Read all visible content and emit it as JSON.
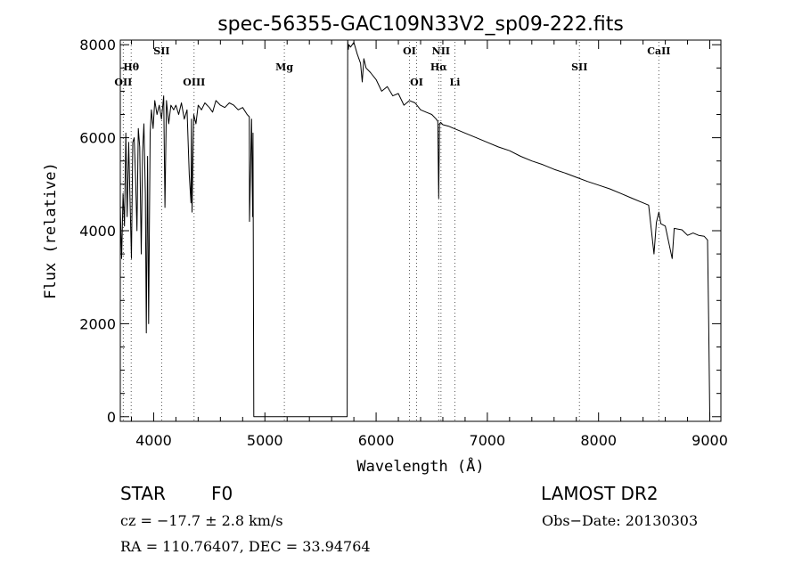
{
  "chart_data": {
    "type": "line",
    "title": "spec-56355-GAC109N33V2_sp09-222.fits",
    "xlabel": "Wavelength (Å)",
    "ylabel": "Flux (relative)",
    "xlim": [
      3700,
      9100
    ],
    "ylim": [
      -100,
      8100
    ],
    "xticks": [
      4000,
      5000,
      6000,
      7000,
      8000,
      9000
    ],
    "yticks": [
      0,
      2000,
      4000,
      6000,
      8000
    ],
    "grid": false,
    "series": [
      {
        "x": [
          3700,
          3712,
          3725,
          3738,
          3750,
          3762,
          3775,
          3788,
          3800,
          3812,
          3825,
          3838,
          3850,
          3862,
          3875,
          3888,
          3900,
          3912,
          3925,
          3934,
          3945,
          3955,
          3968,
          3980,
          3995,
          4010,
          4030,
          4050,
          4070,
          4090,
          4101,
          4115,
          4135,
          4155,
          4180,
          4200,
          4225,
          4250,
          4275,
          4300,
          4320,
          4335,
          4340,
          4345,
          4360,
          4380,
          4400,
          4430,
          4460,
          4500,
          4530,
          4560,
          4600,
          4640,
          4680,
          4720,
          4760,
          4800,
          4840,
          4860,
          4862,
          4880,
          4890,
          4893,
          4900,
          5740,
          5745,
          5750,
          5755,
          5770,
          5800,
          5830,
          5860,
          5875,
          5890,
          5910,
          5950,
          6000,
          6050,
          6100,
          6150,
          6200,
          6250,
          6300,
          6350,
          6400,
          6450,
          6500,
          6540,
          6555,
          6563,
          6570,
          6580,
          6600,
          6650,
          6700,
          6750,
          6800,
          6900,
          7000,
          7100,
          7200,
          7300,
          7400,
          7500,
          7600,
          7700,
          7800,
          7900,
          8000,
          8100,
          8200,
          8300,
          8400,
          8450,
          8498,
          8520,
          8542,
          8560,
          8600,
          8662,
          8680,
          8750,
          8800,
          8850,
          8900,
          8950,
          8980,
          8990,
          9000,
          9005
        ],
        "values": [
          4500,
          3400,
          4800,
          4100,
          6100,
          4300,
          5900,
          4600,
          3400,
          5900,
          6000,
          5100,
          4000,
          6200,
          5800,
          3500,
          5700,
          6300,
          4800,
          1800,
          5600,
          2000,
          6100,
          6600,
          6200,
          6800,
          6500,
          6700,
          6400,
          6900,
          4500,
          6800,
          6300,
          6700,
          6600,
          6700,
          6500,
          6750,
          6400,
          6600,
          5200,
          4600,
          6400,
          4400,
          6500,
          6300,
          6700,
          6600,
          6750,
          6650,
          6550,
          6800,
          6700,
          6650,
          6750,
          6700,
          6600,
          6650,
          6500,
          6450,
          4200,
          6400,
          4300,
          6100,
          0,
          0,
          8100,
          7900,
          8000,
          7950,
          8050,
          7800,
          7600,
          7200,
          7700,
          7500,
          7400,
          7250,
          7000,
          7100,
          6900,
          6950,
          6700,
          6800,
          6750,
          6600,
          6550,
          6500,
          6400,
          6350,
          4700,
          6300,
          6330,
          6280,
          6250,
          6200,
          6150,
          6100,
          6000,
          5900,
          5800,
          5720,
          5600,
          5500,
          5420,
          5320,
          5240,
          5150,
          5060,
          4980,
          4900,
          4800,
          4700,
          4600,
          4550,
          3500,
          4180,
          4400,
          4150,
          4100,
          3400,
          4050,
          4020,
          3900,
          3950,
          3900,
          3880,
          3800,
          2000,
          0,
          0
        ]
      }
    ],
    "line_markers": [
      {
        "label": "OII",
        "x": 3727,
        "row": 3
      },
      {
        "label": "Hθ",
        "x": 3798,
        "row": 2
      },
      {
        "label": "SII",
        "x": 4072,
        "row": 1
      },
      {
        "label": "OIII",
        "x": 4363,
        "row": 3
      },
      {
        "label": "Mg",
        "x": 5175,
        "row": 2
      },
      {
        "label": "OI",
        "x": 6300,
        "row": 1
      },
      {
        "label": "OI",
        "x": 6364,
        "row": 3
      },
      {
        "label": "NII",
        "x": 6583,
        "row": 1
      },
      {
        "label": "Hα",
        "x": 6563,
        "row": 2
      },
      {
        "label": "Li",
        "x": 6708,
        "row": 3
      },
      {
        "label": "SII",
        "x": 7828,
        "row": 2
      },
      {
        "label": "CaII",
        "x": 8542,
        "row": 1
      }
    ]
  },
  "info": {
    "object_class": "STAR",
    "subclass": "F0",
    "cz": "cz = −17.7 ± 2.8 km/s",
    "coords": "RA = 110.76407, DEC =  33.94764",
    "survey": "LAMOST DR2",
    "obs_date": "Obs−Date: 20130303"
  }
}
